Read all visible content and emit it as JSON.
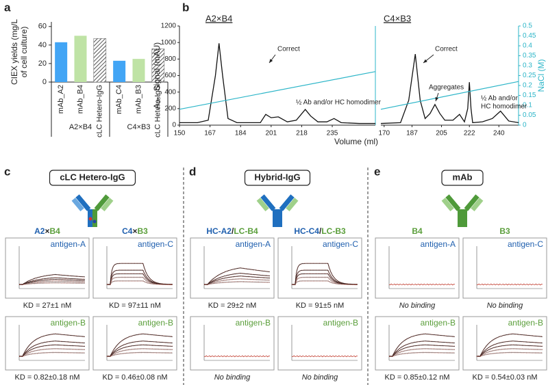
{
  "chart_data": [
    {
      "type": "bar",
      "panel_label": "a",
      "y_label": [
        "CIEX yields (mg/L",
        "of cell culture)"
      ],
      "categories": [
        "mAb_A2",
        "mAb_B4",
        "cLC Hetero-IgG",
        "mAb_C4",
        "mAb_B3",
        "cLC Hetero-IgG"
      ],
      "values": [
        43,
        50,
        47,
        23,
        25,
        36
      ],
      "colors": [
        "#42a5f5",
        "#bfe3a5",
        "#555555",
        "#42a5f5",
        "#bfe3a5",
        "#555555"
      ],
      "hatched": [
        false,
        false,
        true,
        false,
        false,
        true
      ],
      "groups": [
        {
          "label": "A2×B4",
          "size": 3
        },
        {
          "label": "C4×B3",
          "size": 3
        }
      ],
      "ylim": [
        0,
        65
      ],
      "yticks": [
        0,
        20,
        40,
        60
      ]
    },
    {
      "type": "line",
      "panel_label": "b",
      "title": "A2×B4",
      "x_label": "Volume (ml)",
      "y_label": "A₂₈₀ Signal (mAU)",
      "xlim": [
        150,
        259
      ],
      "xticks": [
        150,
        167,
        184,
        201,
        218,
        235
      ],
      "ylim": [
        0,
        1200
      ],
      "yticks": [
        0,
        200,
        400,
        600,
        800,
        1000,
        1200
      ],
      "y2lim": [
        0,
        0.5
      ],
      "series": [
        {
          "color": "#111111",
          "x": [
            150,
            160,
            166,
            170,
            172,
            174,
            177,
            182,
            195,
            198,
            201,
            205,
            210,
            215,
            220,
            223,
            227,
            232,
            236,
            240,
            250,
            259
          ],
          "values": [
            30,
            30,
            60,
            600,
            990,
            600,
            80,
            30,
            30,
            130,
            90,
            100,
            40,
            60,
            190,
            110,
            40,
            40,
            80,
            30,
            20,
            20
          ]
        },
        {
          "color": "#2bb5c8",
          "axis": "y2",
          "x": [
            150,
            259
          ],
          "values": [
            0.08,
            0.27
          ]
        }
      ],
      "annotations": [
        {
          "text": "Correct"
        },
        {
          "text": "½ Ab and/or  HC homodimer"
        }
      ]
    },
    {
      "type": "line",
      "title": "C4×B3",
      "y2_label": "NaCl (M)",
      "xlim": [
        168,
        252
      ],
      "xticks": [
        170,
        187,
        205,
        222,
        240
      ],
      "ylim": [
        0,
        1200
      ],
      "y2lim": [
        0,
        0.5
      ],
      "y2ticks": [
        0,
        0.05,
        0.1,
        0.15,
        0.2,
        0.25,
        0.3,
        0.35,
        0.4,
        0.45,
        0.5
      ],
      "series": [
        {
          "color": "#111111",
          "x": [
            168,
            180,
            185,
            189,
            192,
            195,
            198,
            201,
            204,
            207,
            212,
            216,
            219,
            221,
            222,
            223,
            224,
            230,
            236,
            241,
            246,
            252
          ],
          "values": [
            20,
            30,
            300,
            860,
            300,
            80,
            140,
            250,
            140,
            60,
            60,
            130,
            40,
            200,
            520,
            200,
            30,
            40,
            80,
            170,
            50,
            30
          ]
        },
        {
          "color": "#2bb5c8",
          "axis": "y2",
          "x": [
            168,
            252
          ],
          "values": [
            0.08,
            0.22
          ]
        }
      ],
      "annotations": [
        {
          "text": "Correct"
        },
        {
          "text": "Aggregates"
        },
        {
          "text": [
            "½ Ab and/or",
            "HC homodimer"
          ]
        }
      ]
    }
  ],
  "binding_panels": [
    {
      "label": "c",
      "title": "cLC Hetero-IgG",
      "columns": [
        {
          "header": [
            {
              "text": "A2",
              "color": "#1f5fae"
            },
            {
              "text": "×",
              "color": "#222222"
            },
            {
              "text": "B4",
              "color": "#5a9e3a"
            }
          ],
          "plots": [
            {
              "antigen": "antigen-A",
              "color": "#1f5fae",
              "result": "KD = 27±1 nM",
              "italic": false
            },
            {
              "antigen": "antigen-B",
              "color": "#5a9e3a",
              "result": "KD = 0.82±0.18 nM",
              "italic": false
            }
          ]
        },
        {
          "header": [
            {
              "text": "C4",
              "color": "#1f5fae"
            },
            {
              "text": "×",
              "color": "#222222"
            },
            {
              "text": "B3",
              "color": "#5a9e3a"
            }
          ],
          "plots": [
            {
              "antigen": "antigen-C",
              "color": "#1f5fae",
              "result": "KD = 97±11 nM",
              "italic": false
            },
            {
              "antigen": "antigen-B",
              "color": "#5a9e3a",
              "result": "KD = 0.46±0.08 nM",
              "italic": false
            }
          ]
        }
      ]
    },
    {
      "label": "d",
      "title": "Hybrid-IgG",
      "columns": [
        {
          "header": [
            {
              "text": "HC-A2",
              "color": "#1f5fae"
            },
            {
              "text": "/",
              "color": "#222222"
            },
            {
              "text": "LC-B4",
              "color": "#5a9e3a"
            }
          ],
          "plots": [
            {
              "antigen": "antigen-A",
              "color": "#1f5fae",
              "result": "KD = 29±2 nM",
              "italic": false
            },
            {
              "antigen": "antigen-B",
              "color": "#5a9e3a",
              "result": "No binding",
              "italic": true
            }
          ]
        },
        {
          "header": [
            {
              "text": "HC-C4",
              "color": "#1f5fae"
            },
            {
              "text": "/",
              "color": "#222222"
            },
            {
              "text": "LC-B3",
              "color": "#5a9e3a"
            }
          ],
          "plots": [
            {
              "antigen": "antigen-C",
              "color": "#1f5fae",
              "result": "KD = 91±5 nM",
              "italic": false
            },
            {
              "antigen": "antigen-B",
              "color": "#5a9e3a",
              "result": "No binding",
              "italic": true
            }
          ]
        }
      ]
    },
    {
      "label": "e",
      "title": "mAb",
      "columns": [
        {
          "header": [
            {
              "text": "B4",
              "color": "#5a9e3a"
            }
          ],
          "plots": [
            {
              "antigen": "antigen-A",
              "color": "#1f5fae",
              "result": "No binding",
              "italic": true
            },
            {
              "antigen": "antigen-B",
              "color": "#5a9e3a",
              "result": "KD = 0.85±0.12 nM",
              "italic": false
            }
          ]
        },
        {
          "header": [
            {
              "text": "B3",
              "color": "#5a9e3a"
            }
          ],
          "plots": [
            {
              "antigen": "antigen-C",
              "color": "#1f5fae",
              "result": "No binding",
              "italic": true
            },
            {
              "antigen": "antigen-B",
              "color": "#5a9e3a",
              "result": "KD = 0.54±0.03 nM",
              "italic": false
            }
          ]
        }
      ]
    }
  ]
}
